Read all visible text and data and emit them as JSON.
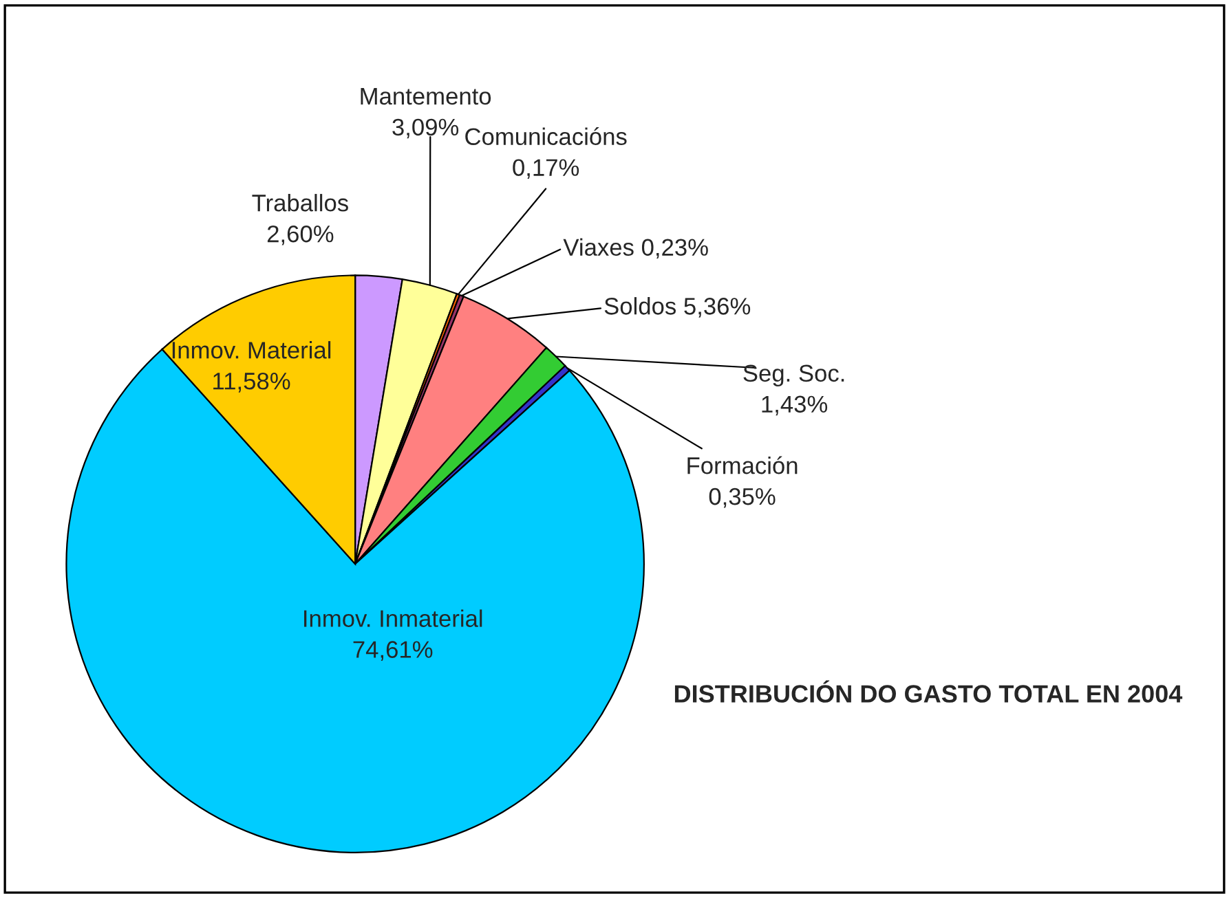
{
  "chart_data": {
    "type": "pie",
    "title": "DISTRIBUCIÓN DO GASTO TOTAL EN 2004",
    "categories": [
      "Traballos",
      "Mantemento",
      "Comunicacións",
      "Viaxes",
      "Soldos",
      "Seg. Soc.",
      "Formación",
      "Inmov. Inmaterial",
      "Inmov. Material"
    ],
    "values": [
      2.6,
      3.09,
      0.17,
      0.23,
      5.36,
      1.43,
      0.35,
      74.61,
      11.58
    ],
    "value_labels": [
      "2,60%",
      "3,09%",
      "0,17%",
      "0,23%",
      "5,36%",
      "1,43%",
      "0,35%",
      "74,61%",
      "11,58%"
    ],
    "colors": [
      "#cc99ff",
      "#ffff99",
      "#ff6600",
      "#993366",
      "#ff8080",
      "#33cc33",
      "#3333cc",
      "#00ccff",
      "#ffcc00"
    ]
  }
}
